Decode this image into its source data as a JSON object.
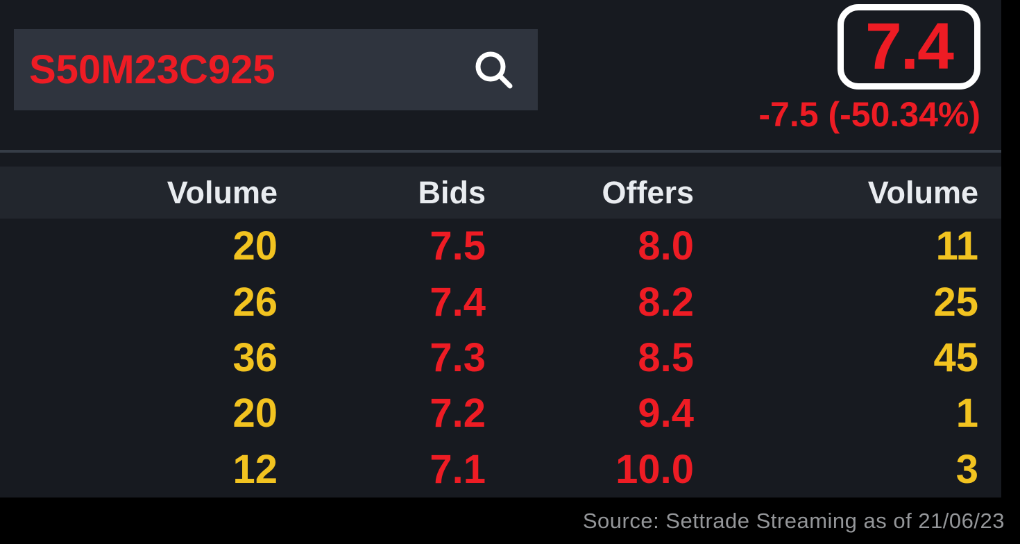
{
  "search": {
    "value": "S50M23C925"
  },
  "quote": {
    "last": "7.4",
    "change": "-7.5 (-50.34%)"
  },
  "depth_table": {
    "headers": [
      "Volume",
      "Bids",
      "Offers",
      "Volume"
    ],
    "rows": [
      [
        "20",
        "7.5",
        "8.0",
        "11"
      ],
      [
        "26",
        "7.4",
        "8.2",
        "25"
      ],
      [
        "36",
        "7.3",
        "8.5",
        "45"
      ],
      [
        "20",
        "7.2",
        "9.4",
        "1"
      ],
      [
        "12",
        "7.1",
        "10.0",
        "3"
      ]
    ]
  },
  "footer": {
    "source": "Source: Settrade Streaming as of 21/06/23"
  },
  "colors": {
    "price_down_red": "#ee1c24",
    "volume_yellow": "#f2c320",
    "panel_bg": "#171a20",
    "header_bg": "#22262d",
    "search_bg": "#2f343e",
    "header_text": "#e9ecf0",
    "source_text": "#949699"
  }
}
